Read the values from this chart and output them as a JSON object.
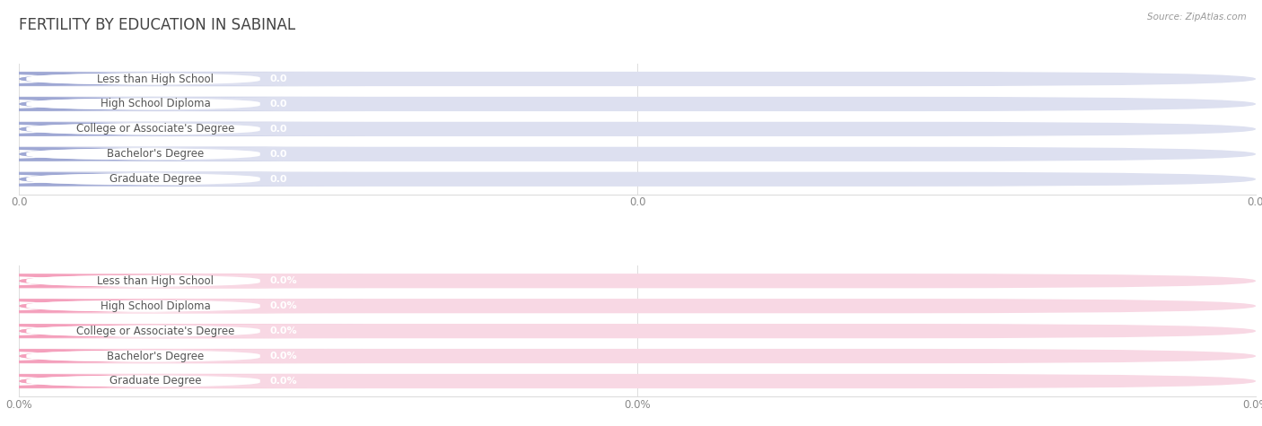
{
  "title": "FERTILITY BY EDUCATION IN SABINAL",
  "source": "Source: ZipAtlas.com",
  "categories": [
    "Less than High School",
    "High School Diploma",
    "College or Associate's Degree",
    "Bachelor's Degree",
    "Graduate Degree"
  ],
  "top_values": [
    0.0,
    0.0,
    0.0,
    0.0,
    0.0
  ],
  "bottom_values": [
    0.0,
    0.0,
    0.0,
    0.0,
    0.0
  ],
  "top_bar_color": "#9fa8d4",
  "top_bar_bg": "#e8e8f2",
  "bottom_bar_color": "#f4a0bc",
  "bottom_bar_bg": "#fce8ef",
  "bg_color": "#ffffff",
  "title_color": "#444444",
  "tick_label_color": "#888888",
  "grid_color": "#dddddd",
  "label_text_color": "#555555",
  "value_text_color_top": "#7880c0",
  "value_text_color_bottom": "#e07090",
  "top_value_format": "0.0",
  "bottom_value_format": "0.0%",
  "pill_bg_top": "#dde0f0",
  "pill_bg_bottom": "#f8d8e4",
  "white_label_color": "#ffffff"
}
